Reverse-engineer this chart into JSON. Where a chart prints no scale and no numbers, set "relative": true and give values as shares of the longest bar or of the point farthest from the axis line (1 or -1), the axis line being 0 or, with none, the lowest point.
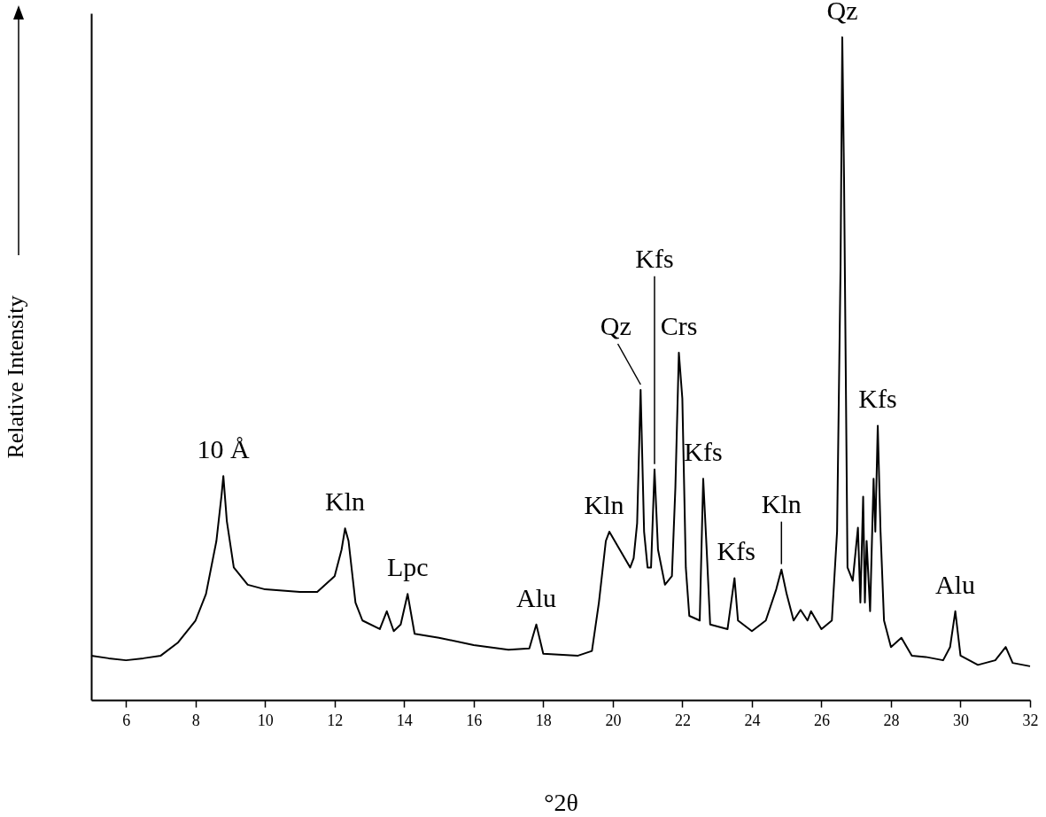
{
  "chart_data": {
    "type": "line",
    "xlabel": "°2θ",
    "ylabel": "Relative Intensity",
    "relative": true,
    "xlim": [
      5,
      32
    ],
    "xticks": [
      6,
      8,
      10,
      12,
      14,
      16,
      18,
      20,
      22,
      24,
      26,
      28,
      30,
      32
    ],
    "x": [
      5,
      5.5,
      6,
      6.5,
      7,
      7.5,
      8,
      8.3,
      8.6,
      8.75,
      8.8,
      8.9,
      9.1,
      9.5,
      10,
      10.5,
      11,
      11.5,
      12,
      12.2,
      12.3,
      12.4,
      12.6,
      12.8,
      13.3,
      13.5,
      13.7,
      13.9,
      14.1,
      14.3,
      15,
      16,
      17,
      17.6,
      17.8,
      18,
      19,
      19.4,
      19.6,
      19.8,
      19.9,
      20.2,
      20.5,
      20.6,
      20.7,
      20.8,
      20.9,
      21,
      21.1,
      21.2,
      21.3,
      21.5,
      21.7,
      21.8,
      21.9,
      22,
      22.1,
      22.2,
      22.5,
      22.6,
      22.7,
      22.8,
      23.3,
      23.5,
      23.6,
      24,
      24.4,
      24.7,
      24.85,
      25,
      25.2,
      25.4,
      25.6,
      25.7,
      26,
      26.3,
      26.45,
      26.55,
      26.6,
      26.65,
      26.75,
      26.9,
      27.05,
      27.12,
      27.2,
      27.25,
      27.3,
      27.4,
      27.5,
      27.55,
      27.62,
      27.7,
      27.8,
      28,
      28.3,
      28.6,
      29,
      29.5,
      29.7,
      29.85,
      30,
      30.5,
      31,
      31.3,
      31.5,
      32
    ],
    "series": [
      {
        "color": "#000000",
        "values": [
          0.067,
          0.063,
          0.06,
          0.063,
          0.067,
          0.087,
          0.12,
          0.16,
          0.24,
          0.31,
          0.338,
          0.27,
          0.2,
          0.174,
          0.167,
          0.165,
          0.163,
          0.163,
          0.187,
          0.227,
          0.259,
          0.24,
          0.147,
          0.12,
          0.107,
          0.134,
          0.104,
          0.114,
          0.16,
          0.1,
          0.094,
          0.083,
          0.076,
          0.078,
          0.114,
          0.07,
          0.067,
          0.074,
          0.147,
          0.24,
          0.254,
          0.227,
          0.2,
          0.214,
          0.267,
          0.468,
          0.254,
          0.2,
          0.2,
          0.348,
          0.227,
          0.174,
          0.187,
          0.321,
          0.524,
          0.455,
          0.2,
          0.127,
          0.12,
          0.334,
          0.227,
          0.114,
          0.107,
          0.184,
          0.12,
          0.104,
          0.12,
          0.167,
          0.197,
          0.16,
          0.12,
          0.136,
          0.12,
          0.134,
          0.107,
          0.12,
          0.254,
          0.655,
          1,
          0.789,
          0.2,
          0.18,
          0.26,
          0.147,
          0.307,
          0.147,
          0.24,
          0.134,
          0.334,
          0.254,
          0.414,
          0.254,
          0.12,
          0.08,
          0.094,
          0.067,
          0.065,
          0.06,
          0.08,
          0.134,
          0.067,
          0.053,
          0.06,
          0.08,
          0.056,
          0.051
        ]
      }
    ],
    "annotations": [
      {
        "text": "10 Å",
        "x": 8.8,
        "y": 0.338
      },
      {
        "text": "Kln",
        "x": 12.3,
        "y": 0.259
      },
      {
        "text": "Lpc",
        "x": 14.1,
        "y": 0.16
      },
      {
        "text": "Alu",
        "x": 17.8,
        "y": 0.114
      },
      {
        "text": "Kln",
        "x": 19.9,
        "y": 0.254
      },
      {
        "text": "Qz",
        "x": 20.8,
        "y": 0.468
      },
      {
        "text": "Kfs",
        "x": 21.2,
        "y": 0.348
      },
      {
        "text": "Crs",
        "x": 21.9,
        "y": 0.524
      },
      {
        "text": "Kfs",
        "x": 22.6,
        "y": 0.334
      },
      {
        "text": "Kfs",
        "x": 23.5,
        "y": 0.184
      },
      {
        "text": "Kln",
        "x": 24.85,
        "y": 0.197
      },
      {
        "text": "Qz",
        "x": 26.6,
        "y": 1
      },
      {
        "text": "Kfs",
        "x": 27.62,
        "y": 0.414
      },
      {
        "text": "Alu",
        "x": 29.85,
        "y": 0.134
      }
    ]
  }
}
